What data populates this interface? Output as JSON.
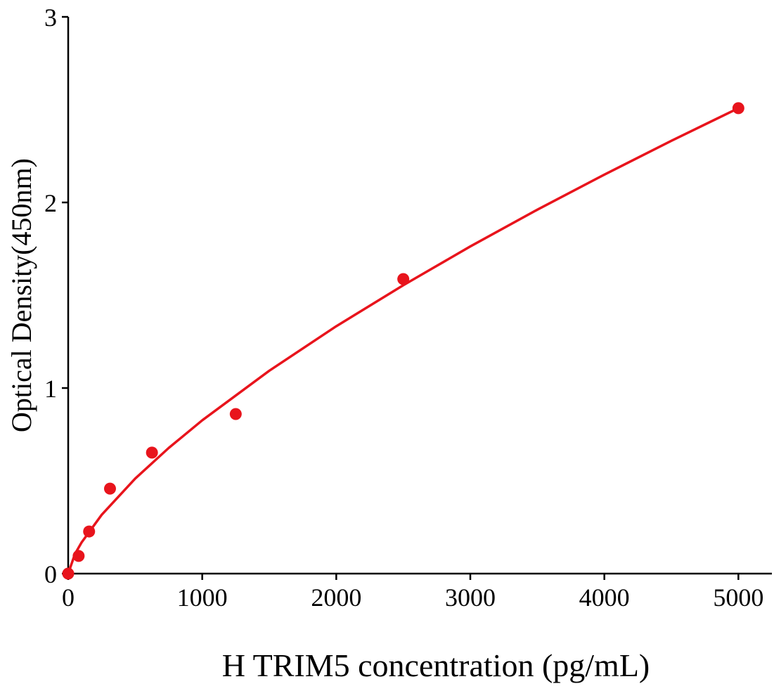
{
  "chart_data": {
    "type": "scatter",
    "x_label": "H TRIM5 concentration (pg/mL)",
    "y_label": "Optical Density(450nm)",
    "xlim": [
      0,
      5250
    ],
    "xticks": [
      0,
      1000,
      2000,
      3000,
      4000,
      5000
    ],
    "ylim": [
      0,
      3
    ],
    "yticks": [
      0,
      1,
      2,
      3
    ],
    "series": [
      {
        "type": "scatter",
        "color": "#e8141c",
        "x": [
          0,
          78,
          156,
          312,
          625,
          1250,
          2500,
          5000
        ],
        "values": [
          0,
          0.095,
          0.227,
          0.458,
          0.652,
          0.86,
          1.587,
          2.508
        ]
      },
      {
        "type": "line",
        "color": "#e8141c",
        "x": [
          0,
          50,
          100,
          250,
          500,
          750,
          1000,
          1500,
          2000,
          2500,
          3000,
          3500,
          4000,
          4500,
          5000
        ],
        "values": [
          0,
          0.105,
          0.168,
          0.317,
          0.512,
          0.677,
          0.826,
          1.093,
          1.333,
          1.554,
          1.763,
          1.961,
          2.15,
          2.332,
          2.508
        ]
      }
    ]
  }
}
